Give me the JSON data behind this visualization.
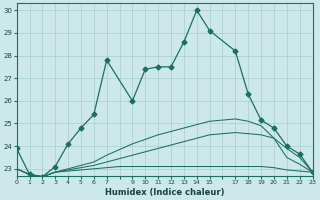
{
  "xlabel": "Humidex (Indice chaleur)",
  "bg_color": "#cce8e8",
  "grid_color": "#aacece",
  "line_color": "#1a7060",
  "xlim": [
    0,
    23
  ],
  "ylim": [
    22.7,
    30.3
  ],
  "xtick_labels": [
    "0",
    "1",
    "2",
    "3",
    "4",
    "5",
    "6",
    "7",
    "",
    "9",
    "10",
    "11",
    "12",
    "13",
    "14",
    "15",
    "",
    "17",
    "18",
    "19",
    "20",
    "21",
    "22",
    "23"
  ],
  "yticks": [
    23,
    24,
    25,
    26,
    27,
    28,
    29,
    30
  ],
  "s1_x": [
    0,
    1,
    2,
    3,
    4,
    5,
    6,
    7,
    9,
    10,
    11,
    12,
    13,
    14,
    15,
    17,
    18,
    19,
    20,
    21,
    22,
    23
  ],
  "s1_y": [
    23.9,
    22.75,
    22.65,
    23.1,
    24.1,
    24.8,
    25.4,
    27.8,
    26.0,
    27.4,
    27.5,
    27.5,
    28.6,
    30.0,
    29.1,
    28.2,
    26.3,
    25.15,
    24.8,
    24.0,
    23.65,
    22.85
  ],
  "s2_x": [
    0,
    1,
    2,
    3,
    4,
    5,
    6,
    7,
    8,
    9,
    10,
    11,
    12,
    13,
    14,
    15,
    16,
    17,
    18,
    19,
    20,
    21,
    22,
    23
  ],
  "s2_y": [
    23.0,
    22.75,
    22.65,
    22.85,
    22.9,
    22.95,
    23.0,
    23.05,
    23.1,
    23.1,
    23.1,
    23.1,
    23.1,
    23.1,
    23.1,
    23.1,
    23.1,
    23.1,
    23.1,
    23.1,
    23.05,
    22.95,
    22.9,
    22.85
  ],
  "s3_x": [
    0,
    1,
    2,
    3,
    4,
    5,
    6,
    7,
    8,
    9,
    10,
    11,
    12,
    13,
    14,
    15,
    16,
    17,
    18,
    19,
    20,
    21,
    22,
    23
  ],
  "s3_y": [
    23.0,
    22.75,
    22.65,
    22.85,
    22.95,
    23.05,
    23.15,
    23.3,
    23.45,
    23.6,
    23.75,
    23.9,
    24.05,
    24.2,
    24.35,
    24.5,
    24.55,
    24.6,
    24.55,
    24.5,
    24.35,
    23.5,
    23.2,
    22.85
  ],
  "s4_x": [
    0,
    1,
    2,
    3,
    4,
    5,
    6,
    7,
    8,
    9,
    10,
    11,
    12,
    13,
    14,
    15,
    16,
    17,
    18,
    19,
    20,
    21,
    22,
    23
  ],
  "s4_y": [
    23.0,
    22.75,
    22.65,
    22.85,
    23.0,
    23.15,
    23.3,
    23.6,
    23.85,
    24.1,
    24.3,
    24.5,
    24.65,
    24.8,
    24.95,
    25.1,
    25.15,
    25.2,
    25.1,
    24.9,
    24.35,
    23.9,
    23.5,
    22.85
  ]
}
